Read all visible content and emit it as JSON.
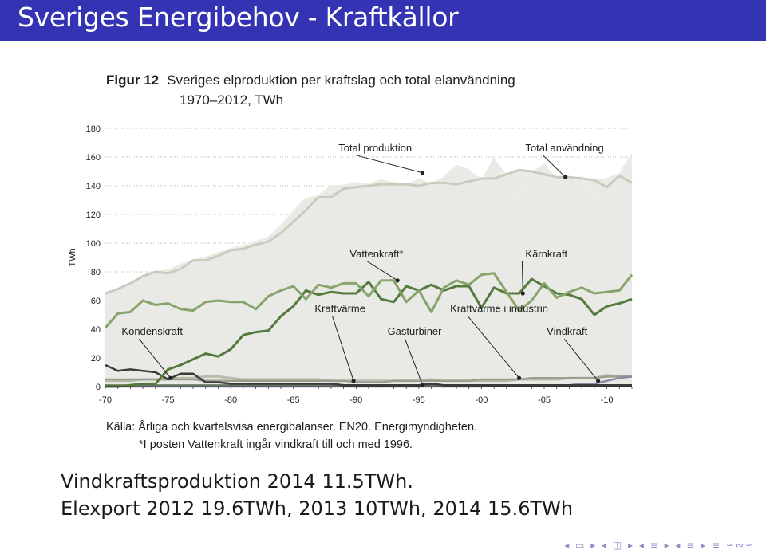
{
  "slide": {
    "title": "Sveriges Energibehov - Kraftkällor",
    "lines": [
      "Vindkraftsproduktion 2014 11.5TWh.",
      "Elexport 2012 19.6TWh, 2013 10TWh, 2014 15.6TWh"
    ],
    "nav_glyphs": "◂ ▭ ▸ ◂ ◫ ▸ ◂ ≡ ▸ ◂ ≡ ▸ ≡ ∽∾∽"
  },
  "figure": {
    "label": "Figur 12",
    "title": "Sveriges elproduktion per kraftslag och total elanvändning",
    "subtitle": "1970–2012, TWh",
    "source": "Källa: Årliga och kvartalsvisa energibalanser. EN20. Energimyndigheten.",
    "note": "*I posten Vattenkraft ingår vindkraft till och med 1996."
  },
  "colors": {
    "title_bar": "#3333b3",
    "area_fill": "#e9eae5",
    "total_anvandning": "#c8ccbd",
    "total_produktion": "#eaece6",
    "vattenkraft": "#86a46c",
    "karnkraft": "#557a3e",
    "kondenskraft": "#3a3a3a",
    "kraftvarme": "#b7bdae",
    "gasturbiner": "#5a6d4f",
    "kraftvarme_industri": "#9aa08f",
    "vindkraft": "#8a8aa3"
  },
  "chart_data": {
    "type": "line",
    "ylabel": "TWh",
    "ylim": [
      0,
      180
    ],
    "xlim": [
      1970,
      2012
    ],
    "grid": "horizontal dotted",
    "yticks": [
      0,
      20,
      40,
      60,
      80,
      100,
      120,
      140,
      160,
      180
    ],
    "xticks": [
      {
        "value": 1970,
        "label": "-70"
      },
      {
        "value": 1975,
        "label": "-75"
      },
      {
        "value": 1980,
        "label": "-80"
      },
      {
        "value": 1985,
        "label": "-85"
      },
      {
        "value": 1990,
        "label": "-90"
      },
      {
        "value": 1995,
        "label": "-95"
      },
      {
        "value": 2000,
        "label": "-00"
      },
      {
        "value": 2005,
        "label": "-05"
      },
      {
        "value": 2010,
        "label": "-10"
      }
    ],
    "x": [
      1970,
      1971,
      1972,
      1973,
      1974,
      1975,
      1976,
      1977,
      1978,
      1979,
      1980,
      1981,
      1982,
      1983,
      1984,
      1985,
      1986,
      1987,
      1988,
      1989,
      1990,
      1991,
      1992,
      1993,
      1994,
      1995,
      1996,
      1997,
      1998,
      1999,
      2000,
      2001,
      2002,
      2003,
      2004,
      2005,
      2006,
      2007,
      2008,
      2009,
      2010,
      2011,
      2012
    ],
    "series": [
      {
        "name": "Total användning",
        "key": "total_anvandning",
        "style": "line",
        "values": [
          65,
          68,
          72,
          77,
          80,
          79,
          82,
          88,
          88,
          91,
          95,
          96,
          99,
          101,
          107,
          115,
          123,
          132,
          132,
          138,
          139,
          140,
          141,
          141,
          141,
          140,
          142,
          142,
          141,
          143,
          145,
          145,
          148,
          151,
          150,
          148,
          146,
          146,
          145,
          144,
          139,
          147,
          142
        ]
      },
      {
        "name": "Total produktion",
        "key": "total_produktion",
        "style": "line",
        "values": [
          60,
          64,
          70,
          76,
          80,
          81,
          85,
          88,
          90,
          93,
          96,
          98,
          101,
          104,
          112,
          122,
          131,
          133,
          140,
          140,
          142,
          141,
          144,
          142,
          138,
          145,
          136,
          146,
          154,
          151,
          142,
          159,
          143,
          131,
          148,
          155,
          140,
          145,
          146,
          133,
          145,
          148,
          162
        ]
      },
      {
        "name": "Vattenkraft*",
        "key": "vattenkraft",
        "style": "line",
        "values": [
          41,
          51,
          52,
          60,
          57,
          58,
          54,
          53,
          59,
          60,
          59,
          59,
          54,
          63,
          67,
          70,
          61,
          71,
          69,
          72,
          72,
          63,
          74,
          74,
          59,
          67,
          52,
          69,
          74,
          71,
          78,
          79,
          66,
          53,
          60,
          72,
          62,
          66,
          69,
          65,
          66,
          67,
          78
        ]
      },
      {
        "name": "Kärnkraft",
        "key": "karnkraft",
        "style": "line",
        "values": [
          0,
          0,
          1,
          2,
          2,
          12,
          15,
          19,
          23,
          21,
          26,
          36,
          38,
          39,
          49,
          56,
          67,
          64,
          66,
          65,
          65,
          73,
          61,
          59,
          70,
          67,
          71,
          67,
          70,
          70,
          55,
          69,
          65,
          65,
          75,
          70,
          65,
          64,
          61,
          50,
          56,
          58,
          61
        ]
      },
      {
        "name": "Kondenskraft",
        "key": "kondenskraft",
        "style": "line",
        "values": [
          15,
          11,
          12,
          11,
          10,
          5,
          9,
          9,
          3,
          3,
          2,
          2,
          2,
          2,
          2,
          2,
          2,
          2,
          2,
          1,
          1,
          1,
          1,
          1,
          1,
          1,
          2,
          1,
          1,
          1,
          1,
          1,
          1,
          1,
          1,
          1,
          1,
          1,
          1,
          1,
          1,
          1,
          1
        ]
      },
      {
        "name": "Kraftvärme",
        "key": "kraftvarme",
        "style": "line",
        "values": [
          4,
          4,
          4,
          5,
          5,
          5,
          6,
          6,
          7,
          7,
          6,
          5,
          5,
          5,
          5,
          5,
          5,
          5,
          4,
          4,
          4,
          4,
          4,
          4,
          4,
          4,
          5,
          4,
          4,
          4,
          4,
          4,
          4,
          5,
          5,
          5,
          5,
          6,
          6,
          6,
          8,
          7,
          7
        ]
      },
      {
        "name": "Gasturbiner",
        "key": "gasturbiner",
        "style": "line",
        "values": [
          1,
          1,
          1,
          1,
          1,
          1,
          1,
          1,
          1,
          1,
          1,
          1,
          1,
          1,
          1,
          1,
          1,
          1,
          1,
          1,
          1,
          1,
          1,
          1,
          1,
          1,
          1,
          1,
          1,
          1,
          1,
          1,
          1,
          1,
          1,
          1,
          1,
          1,
          1,
          1,
          1,
          1,
          1
        ]
      },
      {
        "name": "Kraftvärme i industrin",
        "key": "kraftvarme_industri",
        "style": "line",
        "values": [
          5,
          5,
          5,
          5,
          5,
          5,
          5,
          5,
          4,
          4,
          4,
          4,
          4,
          4,
          4,
          4,
          4,
          4,
          4,
          4,
          3,
          3,
          3,
          4,
          4,
          4,
          4,
          4,
          4,
          4,
          5,
          5,
          5,
          5,
          6,
          6,
          6,
          6,
          6,
          6,
          7,
          7,
          7
        ]
      },
      {
        "name": "Vindkraft",
        "key": "vindkraft",
        "style": "line",
        "values": [
          0,
          0,
          0,
          0,
          0,
          0,
          0,
          0,
          0,
          0,
          0,
          0,
          0,
          0,
          0,
          0,
          0,
          0,
          0,
          0,
          0,
          0,
          0,
          0,
          0,
          0,
          0,
          0,
          0,
          0,
          0,
          1,
          1,
          1,
          1,
          1,
          1,
          1,
          2,
          2,
          4,
          6,
          7
        ]
      }
    ],
    "labels": [
      {
        "text": "Total produktion",
        "key": "total_produktion",
        "anchor": [
          1988.6,
          164
        ],
        "target": [
          1995.3,
          149
        ]
      },
      {
        "text": "Total användning",
        "key": "total_anvandning",
        "anchor": [
          2003.5,
          164
        ],
        "target": [
          2006.7,
          146
        ]
      },
      {
        "text": "Vattenkraft*",
        "key": "vattenkraft",
        "anchor": [
          1989.5,
          90
        ],
        "target": [
          1993.3,
          74
        ]
      },
      {
        "text": "Kärnkraft",
        "key": "karnkraft",
        "anchor": [
          2003.5,
          90
        ],
        "target": [
          2003.3,
          65
        ]
      },
      {
        "text": "Kraftvärme",
        "key": "kraftvarme",
        "anchor": [
          1986.7,
          52
        ],
        "target": [
          1989.8,
          4
        ]
      },
      {
        "text": "Kraftvärme i industrin",
        "key": "kraftvarme_industri",
        "anchor": [
          1997.5,
          52
        ],
        "target": [
          2003,
          6
        ]
      },
      {
        "text": "Kondenskraft",
        "key": "kondenskraft",
        "anchor": [
          1971.3,
          36
        ],
        "target": [
          1975.2,
          6
        ]
      },
      {
        "text": "Gasturbiner",
        "key": "gasturbiner",
        "anchor": [
          1992.5,
          36
        ],
        "target": [
          1995.3,
          1
        ]
      },
      {
        "text": "Vindkraft",
        "key": "vindkraft",
        "anchor": [
          2005.2,
          36
        ],
        "target": [
          2009.3,
          4
        ]
      }
    ]
  }
}
